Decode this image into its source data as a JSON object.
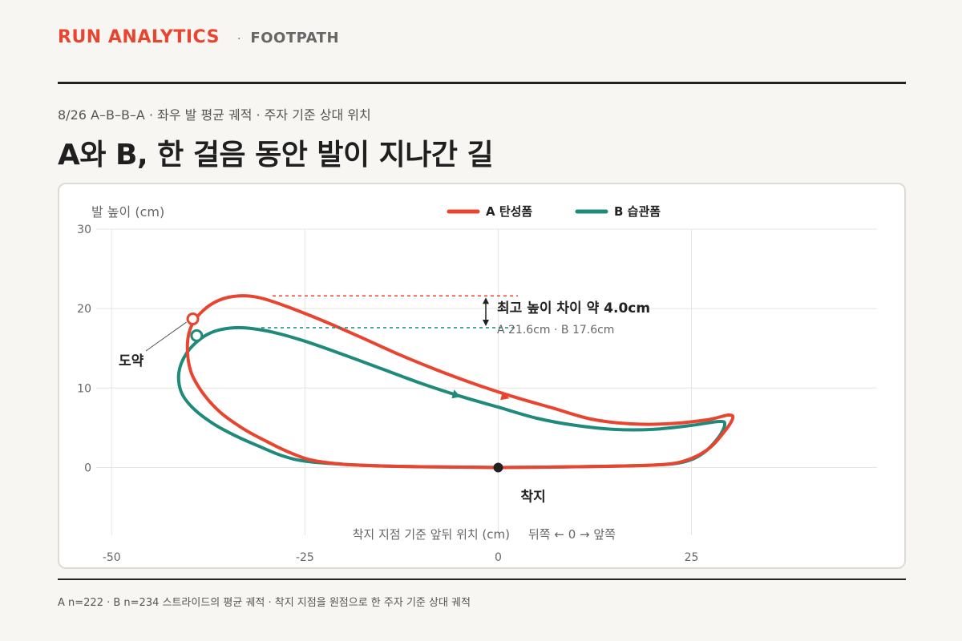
{
  "header": {
    "brand": "RUN ANALYTICS",
    "separator": "·",
    "section": "FOOTPATH"
  },
  "subtitle": "8/26 A–B–B–A · 좌우 발 평균 궤적 · 주자 기준 상대 위치",
  "title": "A와 B, 한 걸음 동안 발이 지나간 길",
  "footnote": "A n=222 · B n=234 스트라이드의 평균 궤적 · 착지 지점을 원점으로 한 주자 기준 상대 궤적",
  "colors": {
    "series_a": "#e8442f",
    "series_b": "#1f8a7a",
    "grid": "#e6e5e0",
    "text_muted": "#666666"
  },
  "chart_data": {
    "type": "line",
    "ylabel": "발 높이 (cm)",
    "xlabel": "착지 지점 기준 앞뒤 위치 (cm)",
    "x_direction_note": "뒤쪽 ← 0 → 앞쪽",
    "xlim": [
      -52,
      49
    ],
    "ylim": [
      -5.5,
      30
    ],
    "x_ticks": [
      -50,
      -25,
      0,
      25
    ],
    "x_tick_labels": [
      "-50",
      "-25",
      "0",
      "25"
    ],
    "y_ticks": [
      0,
      10,
      20,
      30
    ],
    "y_tick_labels": [
      "0",
      "10",
      "20",
      "30"
    ],
    "grid": true,
    "legend_position": "top",
    "series": [
      {
        "name": "A 탄성폼",
        "color": "#e8442f",
        "points": [
          [
            0,
            0
          ],
          [
            10,
            0.1
          ],
          [
            20,
            0.3
          ],
          [
            24,
            0.8
          ],
          [
            27,
            2.2
          ],
          [
            29,
            4.2
          ],
          [
            30.3,
            6.1
          ],
          [
            29.8,
            6.6
          ],
          [
            27,
            6.0
          ],
          [
            22,
            5.5
          ],
          [
            17,
            5.5
          ],
          [
            12,
            6.1
          ],
          [
            7,
            7.5
          ],
          [
            2,
            8.9
          ],
          [
            -3,
            10.5
          ],
          [
            -8,
            12.3
          ],
          [
            -13,
            14.3
          ],
          [
            -18,
            16.5
          ],
          [
            -23,
            18.6
          ],
          [
            -28,
            20.5
          ],
          [
            -31,
            21.4
          ],
          [
            -33.5,
            21.6
          ],
          [
            -36,
            21.1
          ],
          [
            -38,
            19.9
          ],
          [
            -39.6,
            18.0
          ],
          [
            -40.2,
            15.5
          ],
          [
            -39.8,
            12.2
          ],
          [
            -38.3,
            9.5
          ],
          [
            -36,
            7.0
          ],
          [
            -33,
            4.9
          ],
          [
            -30,
            3.3
          ],
          [
            -27,
            1.9
          ],
          [
            -24,
            0.9
          ],
          [
            -20,
            0.4
          ],
          [
            -15,
            0.2
          ],
          [
            -10,
            0.1
          ],
          [
            -5,
            0.05
          ],
          [
            0,
            0
          ]
        ],
        "arrow_at": [
          0.8,
          9.0
        ],
        "jump_marker": [
          -39.5,
          18.7
        ]
      },
      {
        "name": "B 습관폼",
        "color": "#1f8a7a",
        "points": [
          [
            0,
            0
          ],
          [
            10,
            0.1
          ],
          [
            20,
            0.3
          ],
          [
            24,
            0.7
          ],
          [
            26.5,
            1.8
          ],
          [
            28.5,
            3.8
          ],
          [
            29.3,
            5.4
          ],
          [
            28.6,
            5.8
          ],
          [
            25,
            5.3
          ],
          [
            20,
            4.8
          ],
          [
            15,
            4.8
          ],
          [
            10,
            5.3
          ],
          [
            5,
            6.2
          ],
          [
            0,
            7.6
          ],
          [
            -5,
            9.0
          ],
          [
            -10,
            10.6
          ],
          [
            -15,
            12.4
          ],
          [
            -20,
            14.2
          ],
          [
            -25,
            15.9
          ],
          [
            -29,
            17.0
          ],
          [
            -32,
            17.5
          ],
          [
            -34,
            17.6
          ],
          [
            -36.5,
            17.2
          ],
          [
            -38.5,
            16.2
          ],
          [
            -40.3,
            14.4
          ],
          [
            -41.3,
            12.0
          ],
          [
            -41,
            9.5
          ],
          [
            -39.5,
            7.5
          ],
          [
            -37,
            5.6
          ],
          [
            -34,
            4.0
          ],
          [
            -31,
            2.7
          ],
          [
            -28,
            1.5
          ],
          [
            -25,
            0.8
          ],
          [
            -20,
            0.4
          ],
          [
            -15,
            0.2
          ],
          [
            -10,
            0.1
          ],
          [
            -5,
            0.05
          ],
          [
            0,
            0
          ]
        ],
        "arrow_at": [
          -5.5,
          9.2
        ],
        "jump_marker": [
          -39,
          16.6
        ]
      }
    ],
    "annotations": {
      "peak_a": 21.6,
      "peak_b": 17.6,
      "diff_text": "최고 높이 차이  약 4.0cm",
      "detail_text": "A 21.6cm · B 17.6cm",
      "jump_label": "도약",
      "landing_label": "착지",
      "landing_point": [
        0,
        0
      ]
    }
  }
}
